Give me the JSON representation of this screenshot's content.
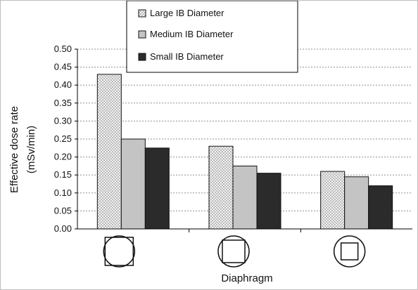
{
  "chart_data": {
    "type": "bar",
    "categories": [
      "",
      "",
      ""
    ],
    "category_icons": [
      "diaphragm-square-large-icon",
      "diaphragm-square-medium-icon",
      "diaphragm-square-small-icon"
    ],
    "series": [
      {
        "name": "Large IB Diameter",
        "values": [
          0.43,
          0.23,
          0.16
        ],
        "color": "#d3d3d3",
        "pattern": "dotted"
      },
      {
        "name": "Medium IB Diameter",
        "values": [
          0.25,
          0.175,
          0.145
        ],
        "color": "#c4c4c4",
        "pattern": "solid"
      },
      {
        "name": "Small IB Diameter",
        "values": [
          0.225,
          0.155,
          0.12
        ],
        "color": "#2b2b2b",
        "pattern": "solid"
      }
    ],
    "title": "",
    "xlabel": "Diaphragm",
    "ylabel": "Effective dose rate",
    "ylabel_line2": "(mSv/min)",
    "ylim": [
      0,
      0.5
    ],
    "yticks": [
      "0.00",
      "0.05",
      "0.10",
      "0.15",
      "0.20",
      "0.25",
      "0.30",
      "0.35",
      "0.40",
      "0.45",
      "0.50"
    ],
    "grid": true,
    "legend_position": "top-center"
  }
}
